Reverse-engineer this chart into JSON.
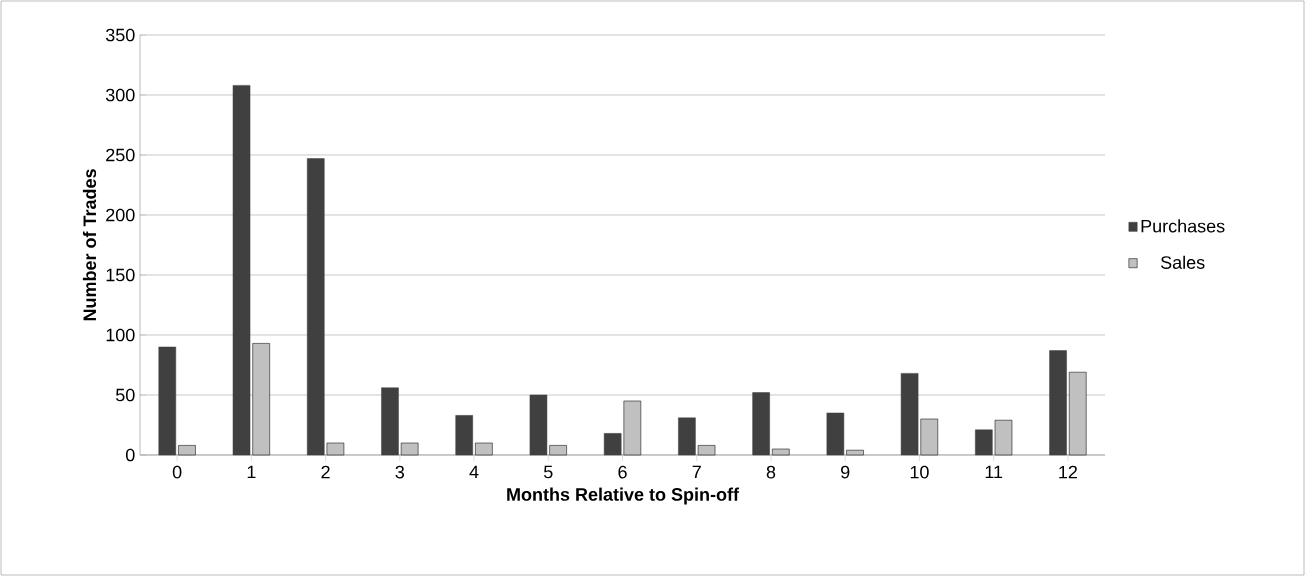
{
  "chart_data": {
    "type": "bar",
    "xlabel": "Months Relative to Spin-off",
    "ylabel": "Number of Trades",
    "categories": [
      "0",
      "1",
      "2",
      "3",
      "4",
      "5",
      "6",
      "7",
      "8",
      "9",
      "10",
      "11",
      "12"
    ],
    "series": [
      {
        "name": "Purchases",
        "color": "#404040",
        "values": [
          90,
          308,
          247,
          56,
          33,
          50,
          18,
          31,
          52,
          35,
          68,
          21,
          87
        ]
      },
      {
        "name": "Sales",
        "color": "#c0c0c0",
        "values": [
          8,
          93,
          10,
          10,
          10,
          8,
          45,
          8,
          5,
          4,
          30,
          29,
          69
        ]
      }
    ],
    "ylim": [
      0,
      350
    ],
    "yticks": [
      0,
      50,
      100,
      150,
      200,
      250,
      300,
      350
    ],
    "grid": "y",
    "legend": "right"
  }
}
